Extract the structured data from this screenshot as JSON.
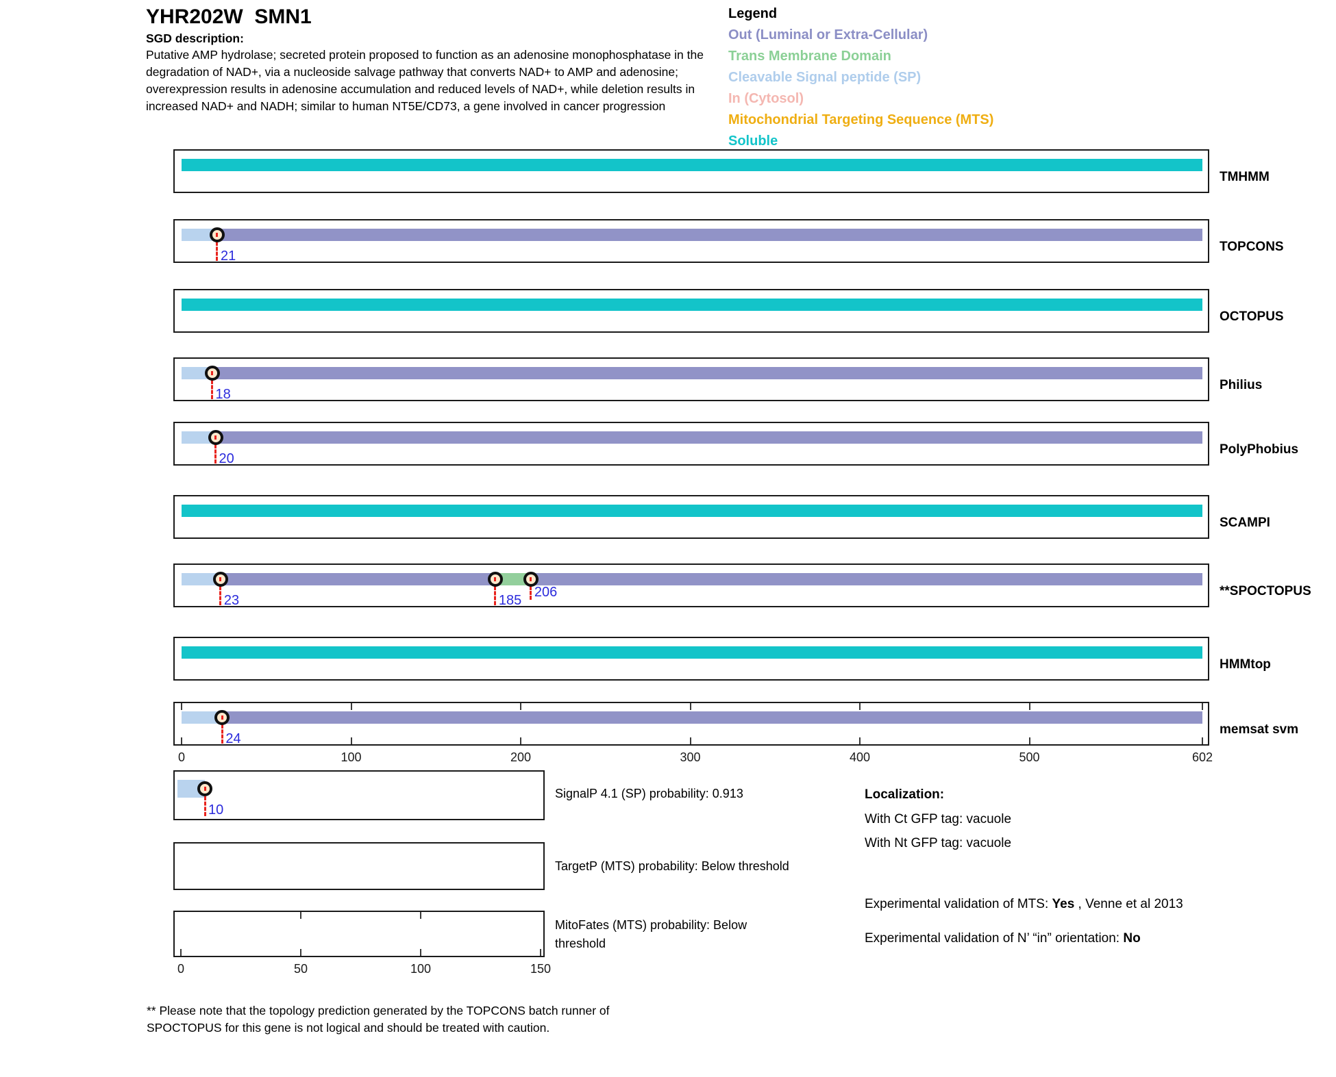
{
  "header": {
    "title": "YHR202W  SMN1",
    "sgd_label": "SGD description:",
    "description_lines": [
      "Putative AMP hydrolase; secreted protein proposed to function as an adenosine monophosphatase in the",
      "degradation of NAD+, via a nucleoside salvage pathway that converts NAD+ to AMP and adenosine;",
      "overexpression results in adenosine accumulation and reduced levels of NAD+, while deletion results in",
      "increased NAD+ and NADH; similar to human NT5E/CD73, a gene involved in cancer progression"
    ]
  },
  "legend": {
    "title": "Legend",
    "items": [
      {
        "key": "out",
        "label": "Out (Luminal or Extra-Cellular)",
        "color": "#8B8EC5"
      },
      {
        "key": "tm",
        "label": "Trans Membrane Domain",
        "color": "#8BD096"
      },
      {
        "key": "sp",
        "label": "Cleavable Signal peptide (SP)",
        "color": "#AFCDEC"
      },
      {
        "key": "in",
        "label": "In (Cytosol)",
        "color": "#F4B7B1"
      },
      {
        "key": "mts",
        "label": "Mitochondrial Targeting Sequence (MTS)",
        "color": "#EFAE12"
      },
      {
        "key": "soluble",
        "label": "Soluble",
        "color": "#13C4C9"
      }
    ]
  },
  "chart_data": {
    "type": "protein-topology-tracks",
    "sequence_length": 602,
    "segment_colors": {
      "out": "#9193C7",
      "tm": "#93CF9C",
      "sp": "#B9D3EE",
      "in": "#F4B7B1",
      "mts": "#EFAE12",
      "soluble": "#13C4C9"
    },
    "marker_style": {
      "fill": "#FBE8CC",
      "line": "#E8231D",
      "label_color": "#2B2BDC"
    },
    "main_axis_ticks": [
      0,
      100,
      200,
      300,
      400,
      500,
      602
    ],
    "tracks": [
      {
        "label": "TMHMM",
        "segments": [
          {
            "type": "soluble",
            "start": 0,
            "end": 602
          }
        ],
        "markers": []
      },
      {
        "label": "TOPCONS",
        "segments": [
          {
            "type": "sp",
            "start": 0,
            "end": 21
          },
          {
            "type": "out",
            "start": 21,
            "end": 602
          }
        ],
        "markers": [
          {
            "pos": 21,
            "label": "21"
          }
        ]
      },
      {
        "label": "OCTOPUS",
        "segments": [
          {
            "type": "soluble",
            "start": 0,
            "end": 602
          }
        ],
        "markers": []
      },
      {
        "label": "Philius",
        "segments": [
          {
            "type": "sp",
            "start": 0,
            "end": 18
          },
          {
            "type": "out",
            "start": 18,
            "end": 602
          }
        ],
        "markers": [
          {
            "pos": 18,
            "label": "18"
          }
        ]
      },
      {
        "label": "PolyPhobius",
        "segments": [
          {
            "type": "sp",
            "start": 0,
            "end": 20
          },
          {
            "type": "out",
            "start": 20,
            "end": 602
          }
        ],
        "markers": [
          {
            "pos": 20,
            "label": "20"
          }
        ]
      },
      {
        "label": "SCAMPI",
        "segments": [
          {
            "type": "soluble",
            "start": 0,
            "end": 602
          }
        ],
        "markers": []
      },
      {
        "label": "**SPOCTOPUS",
        "segments": [
          {
            "type": "sp",
            "start": 0,
            "end": 23
          },
          {
            "type": "out",
            "start": 23,
            "end": 185
          },
          {
            "type": "tm",
            "start": 185,
            "end": 206
          },
          {
            "type": "out",
            "start": 206,
            "end": 602
          }
        ],
        "markers": [
          {
            "pos": 23,
            "label": "23"
          },
          {
            "pos": 185,
            "label": "185"
          },
          {
            "pos": 206,
            "label": "206",
            "raised": true
          }
        ]
      },
      {
        "label": "HMMtop",
        "segments": [
          {
            "type": "soluble",
            "start": 0,
            "end": 602
          }
        ],
        "markers": []
      },
      {
        "label": "memsat svm",
        "segments": [
          {
            "type": "sp",
            "start": 0,
            "end": 24
          },
          {
            "type": "out",
            "start": 24,
            "end": 602
          }
        ],
        "markers": [
          {
            "pos": 24,
            "label": "24"
          }
        ],
        "axis_ticks": [
          0,
          100,
          200,
          300,
          400,
          500,
          602
        ]
      }
    ],
    "sub_plots": [
      {
        "id": "signalp",
        "label": "SignalP 4.1 (SP) probability: 0.913",
        "segments": [
          {
            "type": "sp",
            "start": 0,
            "end": 10
          }
        ],
        "markers": [
          {
            "pos": 10,
            "label": "10"
          }
        ],
        "bottom_ticks": [],
        "top_ticks": [],
        "axis_labels": []
      },
      {
        "id": "targetp",
        "label": "TargetP (MTS) probability: Below threshold",
        "segments": [],
        "markers": [],
        "bottom_ticks": [],
        "top_ticks": [],
        "axis_labels": []
      },
      {
        "id": "mitofates",
        "label": "MitoFates (MTS) probability: Below threshold",
        "segments": [],
        "markers": [],
        "bottom_ticks": [
          0,
          50,
          100,
          150
        ],
        "top_ticks": [
          50,
          100
        ],
        "axis_labels": [
          0,
          50,
          100,
          150
        ]
      }
    ]
  },
  "localization": {
    "title": "Localization:",
    "ct_line": "With Ct GFP tag: vacuole",
    "nt_line": "With Nt GFP tag: vacuole",
    "mts_prefix": "Experimental validation of MTS: ",
    "mts_value": "Yes",
    "mts_suffix": " , Venne et al 2013",
    "orient_prefix": "Experimental validation of N’ “in” orientation: ",
    "orient_value": "No"
  },
  "footnote_lines": [
    "** Please note that the topology prediction generated by the TOPCONS batch runner of",
    "SPOCTOPUS for this gene is not logical and should be treated with caution."
  ]
}
